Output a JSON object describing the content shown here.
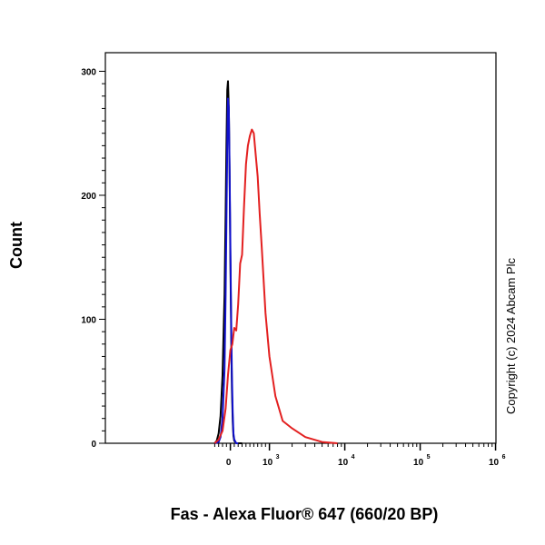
{
  "chart_data": {
    "type": "line",
    "title": "",
    "xlabel": "Fas - Alexa Fluor® 647 (660/20 BP)",
    "ylabel": "Count",
    "x_scale": "biexponential",
    "xlim": [
      -400,
      1000000
    ],
    "ylim": [
      0,
      315
    ],
    "y_ticks": [
      0,
      100,
      200,
      300
    ],
    "x_ticks": [
      {
        "value": 0,
        "base": "0",
        "exp": ""
      },
      {
        "value": 1000,
        "base": "10",
        "exp": "3"
      },
      {
        "value": 10000,
        "base": "10",
        "exp": "4"
      },
      {
        "value": 100000,
        "base": "10",
        "exp": "5"
      },
      {
        "value": 1000000,
        "base": "10",
        "exp": "6"
      }
    ],
    "grid": false,
    "legend": "none",
    "annotation": "Copyright (c) 2024 Abcam Plc",
    "series": [
      {
        "color": "#000000",
        "x": [
          -400,
          -350,
          -300,
          -250,
          -200,
          -150,
          -120,
          -100,
          -80,
          -60,
          -40,
          -20,
          0,
          20,
          40,
          60,
          80,
          100,
          150,
          200,
          300
        ],
        "y": [
          0,
          2,
          8,
          22,
          55,
          120,
          185,
          240,
          285,
          292,
          270,
          220,
          150,
          90,
          45,
          18,
          6,
          2,
          0,
          0,
          0
        ]
      },
      {
        "color": "#1010cc",
        "x": [
          -400,
          -300,
          -250,
          -200,
          -150,
          -120,
          -100,
          -80,
          -60,
          -40,
          -20,
          0,
          20,
          40,
          60,
          80,
          100,
          150,
          200
        ],
        "y": [
          0,
          1,
          5,
          20,
          60,
          120,
          180,
          240,
          278,
          270,
          225,
          160,
          100,
          55,
          25,
          8,
          3,
          0,
          0
        ]
      },
      {
        "color": "#e32020",
        "x": [
          -400,
          -300,
          -200,
          -120,
          -60,
          0,
          50,
          100,
          150,
          200,
          250,
          300,
          350,
          400,
          450,
          500,
          550,
          600,
          650,
          700,
          750,
          800,
          900,
          1000,
          1200,
          1500,
          2000,
          3000,
          5000,
          8000
        ],
        "y": [
          0,
          3,
          10,
          28,
          55,
          75,
          80,
          93,
          91,
          112,
          145,
          152,
          190,
          225,
          240,
          248,
          253,
          250,
          232,
          215,
          185,
          160,
          105,
          70,
          38,
          18,
          12,
          5,
          1,
          0
        ]
      }
    ]
  }
}
